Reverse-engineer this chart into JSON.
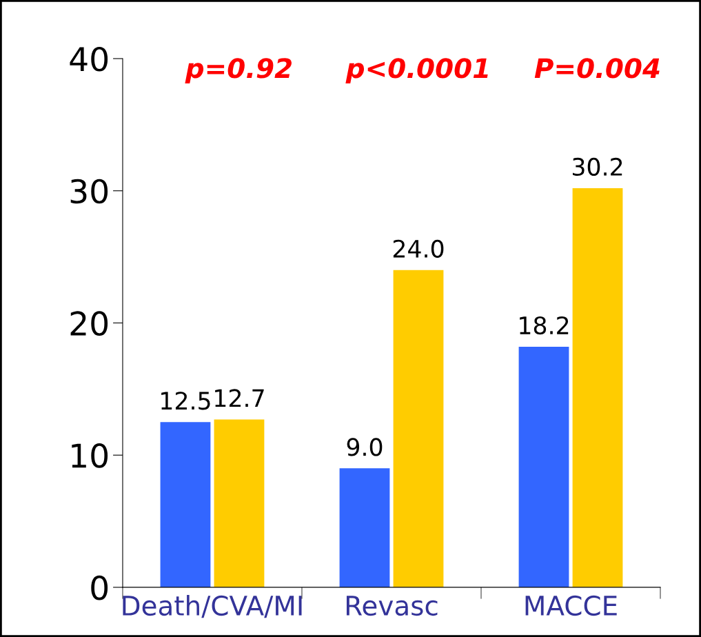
{
  "chart_data": {
    "type": "bar",
    "categories": [
      "Death/CVA/MI",
      "Revasc",
      "MACCE"
    ],
    "series": [
      {
        "color": "#3366ff",
        "values": [
          12.5,
          9.0,
          18.2
        ],
        "value_labels": [
          "12.5",
          "9.0",
          "18.2"
        ]
      },
      {
        "color": "#ffcc00",
        "values": [
          12.7,
          24.0,
          30.2
        ],
        "value_labels": [
          "12.7",
          "24.0",
          "30.2"
        ]
      }
    ],
    "ylim": [
      0,
      40
    ],
    "yticks": [
      0,
      10,
      20,
      30,
      40
    ],
    "grid": false,
    "legend": false,
    "annotations": [
      "p=0.92",
      "p<0.0001",
      "P=0.004"
    ]
  }
}
